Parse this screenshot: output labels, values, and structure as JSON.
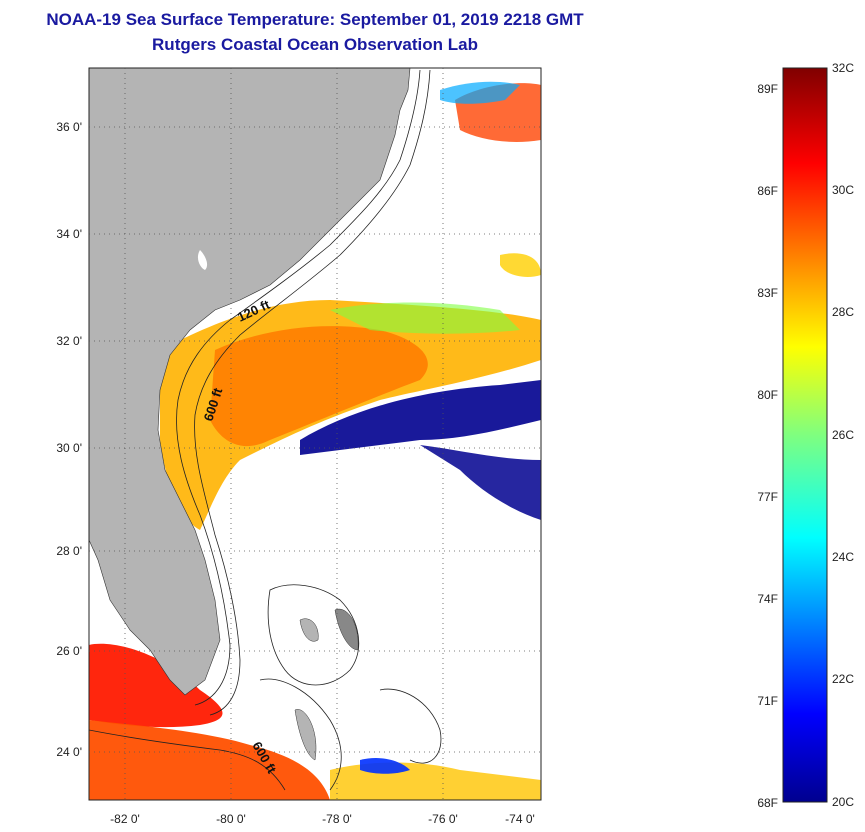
{
  "title_line1": "NOAA-19 Sea Surface Temperature:  September 01, 2019 2218 GMT",
  "title_line2": "Rutgers Coastal Ocean Observation Lab",
  "lat_labels": [
    "36 0'",
    "34 0'",
    "32 0'",
    "30 0'",
    "28 0'",
    "26 0'",
    "24 0'"
  ],
  "lon_labels": [
    "-82 0'",
    "-80 0'",
    "-78 0'",
    "-76 0'",
    "-74 0'"
  ],
  "contour_labels": [
    "120 ft",
    "600 ft",
    "600 ft"
  ],
  "colorbar": {
    "fahrenheit": [
      "89F",
      "86F",
      "83F",
      "80F",
      "77F",
      "74F",
      "71F",
      "68F"
    ],
    "celsius": [
      "32C",
      "30C",
      "28C",
      "26C",
      "24C",
      "22C",
      "20C"
    ]
  },
  "colors": {
    "title": "#1a1aa0",
    "land": "#b4b4b4",
    "cold": "#00008f",
    "warm": "#ff4a00"
  }
}
